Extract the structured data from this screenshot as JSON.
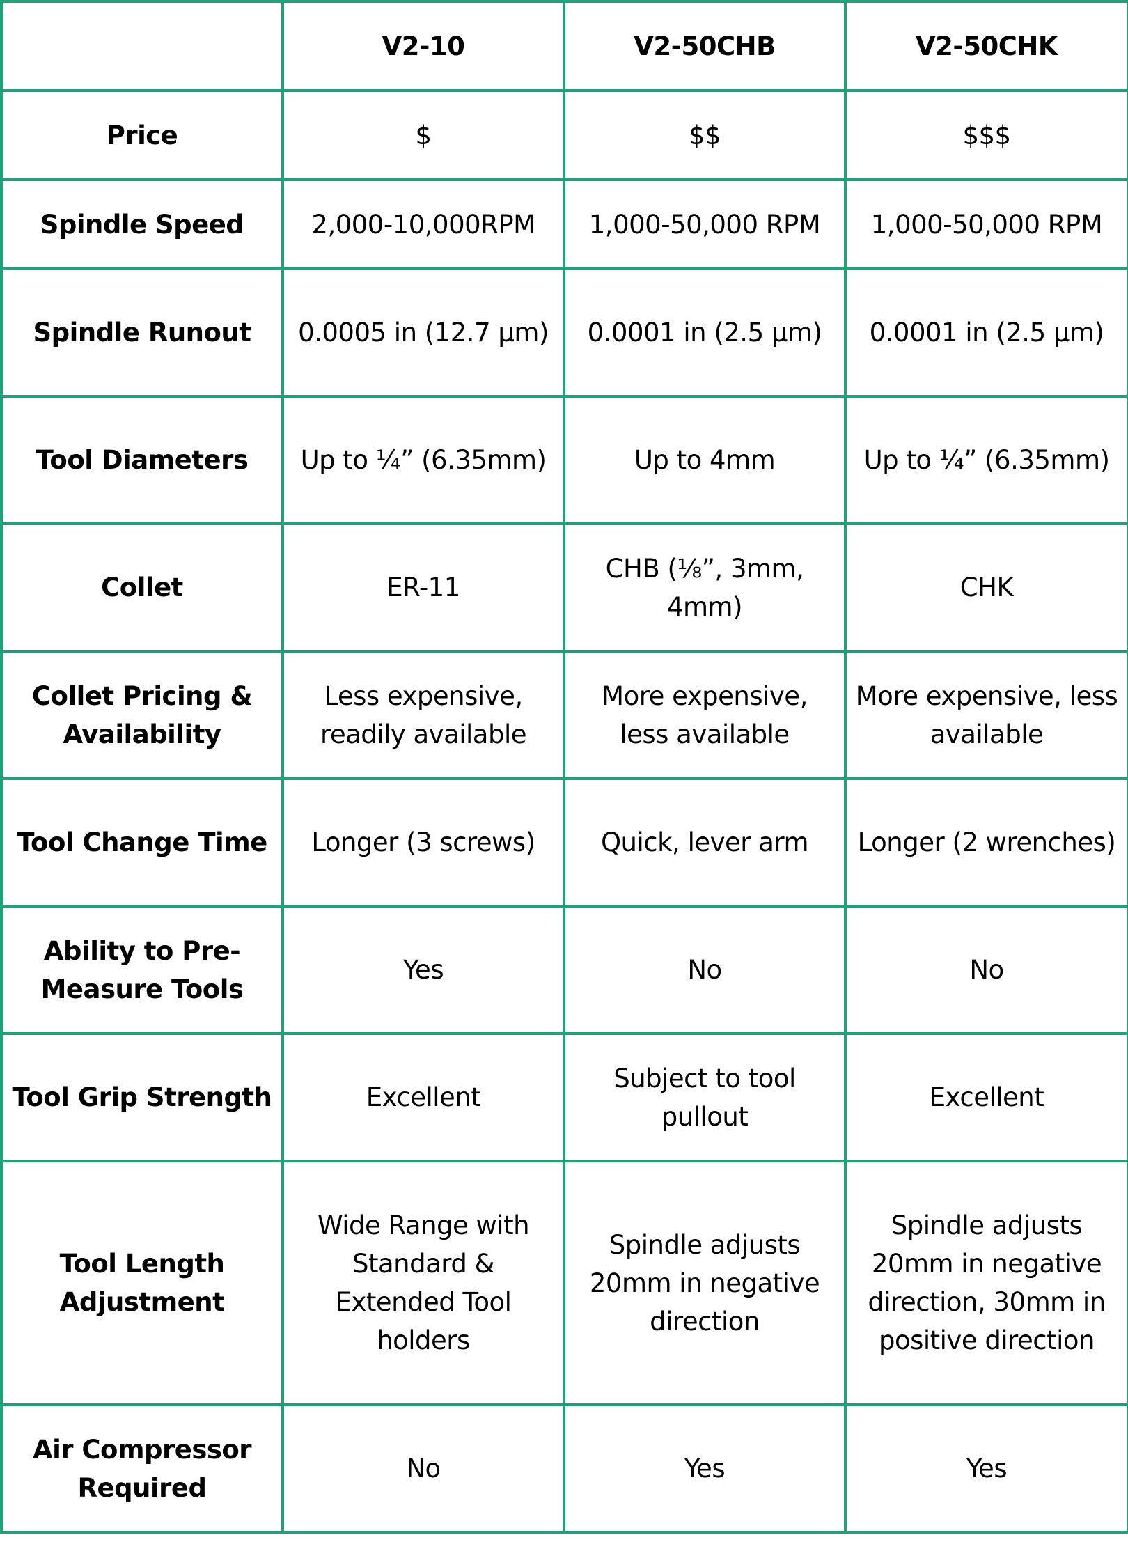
{
  "table": {
    "columns": [
      "",
      "V2-10",
      "V2-50CHB",
      "V2-50CHK"
    ],
    "border_color": "#21a179",
    "rows": [
      {
        "label": "Price",
        "values": [
          "$",
          "$$",
          "$$$"
        ]
      },
      {
        "label": "Spindle Speed",
        "values": [
          "2,000-10,000RPM",
          "1,000-50,000 RPM",
          "1,000-50,000 RPM"
        ]
      },
      {
        "label": "Spindle Runout",
        "values": [
          "0.0005 in (12.7 μm)",
          "0.0001 in (2.5 μm)",
          "0.0001 in (2.5 μm)"
        ]
      },
      {
        "label": "Tool Diameters",
        "values": [
          "Up to ¼” (6.35mm)",
          "Up to 4mm",
          "Up to ¼” (6.35mm)"
        ]
      },
      {
        "label": "Collet",
        "values": [
          "ER-11",
          "CHB (⅛”, 3mm, 4mm)",
          "CHK"
        ]
      },
      {
        "label": "Collet Pricing & Availability",
        "values": [
          "Less expensive, readily available",
          "More expensive, less available",
          "More expensive, less available"
        ]
      },
      {
        "label": "Tool Change Time",
        "values": [
          "Longer (3 screws)",
          "Quick, lever arm",
          "Longer (2 wrenches)"
        ]
      },
      {
        "label": "Ability to Pre-Measure Tools",
        "values": [
          "Yes",
          "No",
          "No"
        ]
      },
      {
        "label": "Tool Grip Strength",
        "values": [
          "Excellent",
          "Subject to tool pullout",
          "Excellent"
        ]
      },
      {
        "label": "Tool Length Adjustment",
        "values": [
          "Wide Range with Standard & Extended Tool holders",
          "Spindle adjusts 20mm in negative direction",
          "Spindle adjusts 20mm in negative direction, 30mm in positive direction"
        ]
      },
      {
        "label": "Air Compressor Required",
        "values": [
          "No",
          "Yes",
          "Yes"
        ]
      }
    ]
  }
}
